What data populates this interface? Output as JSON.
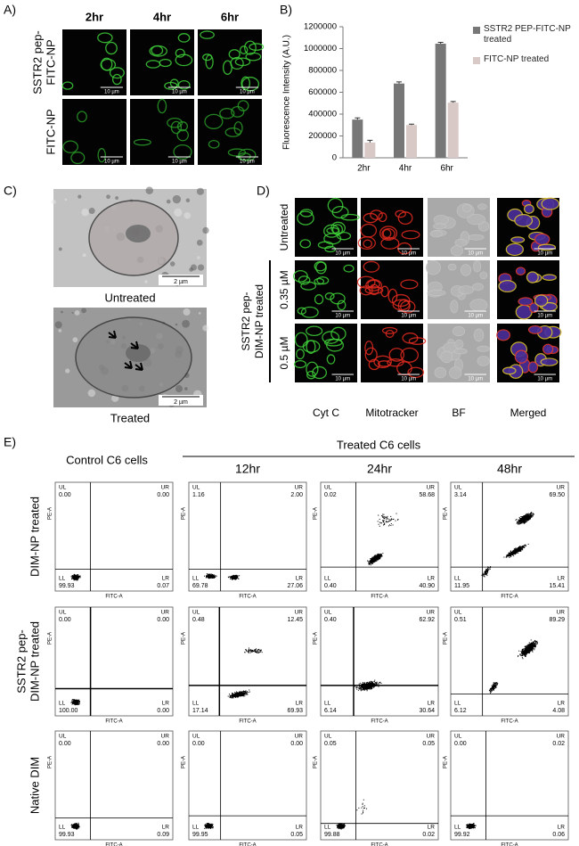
{
  "panel_a": {
    "label": "A)",
    "columns": [
      "2hr",
      "4hr",
      "6hr"
    ],
    "rows": [
      [
        "SSTR2 pep-",
        "FITC-NP"
      ],
      [
        "FITC-NP"
      ]
    ],
    "scale_bar": "10 µm"
  },
  "chart_data": {
    "type": "bar",
    "label": "B)",
    "y_label": "Fluorescence Intensity (A.U.)",
    "categories": [
      "2hr",
      "4hr",
      "6hr"
    ],
    "series": [
      {
        "name": "SSTR2 PEP-FITC-NP treated",
        "color": "#777777",
        "values": [
          350000,
          680000,
          1045000
        ],
        "errors": [
          15000,
          15000,
          12000
        ]
      },
      {
        "name": "FITC-NP treated",
        "color": "#d8c8c6",
        "values": [
          140000,
          300000,
          505000
        ],
        "errors": [
          20000,
          8000,
          10000
        ]
      }
    ],
    "ylim": [
      0,
      1200000
    ],
    "yticks": [
      0,
      200000,
      400000,
      600000,
      800000,
      1000000,
      1200000
    ]
  },
  "panel_c": {
    "label": "C)",
    "captions": [
      "Untreated",
      "Treated"
    ],
    "scale_bar": "2 µm"
  },
  "panel_d": {
    "label": "D)",
    "columns": [
      "Cyt C",
      "Mitotracker",
      "BF",
      "Merged"
    ],
    "rows": [
      "Untreated",
      "0.35 µM",
      "0.5 µM"
    ],
    "group_label": [
      "SSTR2 pep-",
      "DIM-NP treated"
    ],
    "scale_bar": "10 µm"
  },
  "panel_e": {
    "label": "E)",
    "control_title": "Control C6 cells",
    "treated_title": "Treated C6 cells",
    "time_points": [
      "12hr",
      "24hr",
      "48hr"
    ],
    "quadrant_names": [
      "UL",
      "UR",
      "LL",
      "LR"
    ],
    "x_axis": "FITC-A",
    "y_axis": "PE-A",
    "rows": [
      {
        "label": [
          "DIM-NP treated"
        ],
        "plots": [
          [
            "0.00",
            "0.00",
            "99.93",
            "0.07"
          ],
          [
            "1.16",
            "2.00",
            "69.78",
            "27.06"
          ],
          [
            "0.02",
            "58.68",
            "0.40",
            "40.90"
          ],
          [
            "3.14",
            "69.50",
            "11.95",
            "15.41"
          ]
        ]
      },
      {
        "label": [
          "SSTR2 pep-",
          "DIM-NP treated"
        ],
        "plots": [
          [
            "0.00",
            "0.00",
            "100.00",
            "0.00"
          ],
          [
            "0.48",
            "12.45",
            "17.14",
            "69.93"
          ],
          [
            "0.40",
            "62.92",
            "6.14",
            "30.64"
          ],
          [
            "0.51",
            "89.29",
            "6.12",
            "4.08"
          ]
        ]
      },
      {
        "label": [
          "Native DIM"
        ],
        "plots": [
          [
            "0.00",
            "0.00",
            "99.93",
            "0.09"
          ],
          [
            "0.00",
            "0.00",
            "99.95",
            "0.05"
          ],
          [
            "0.05",
            "0.05",
            "99.88",
            "0.02"
          ],
          [
            "0.00",
            "0.02",
            "99.92",
            "0.06"
          ]
        ]
      }
    ]
  }
}
